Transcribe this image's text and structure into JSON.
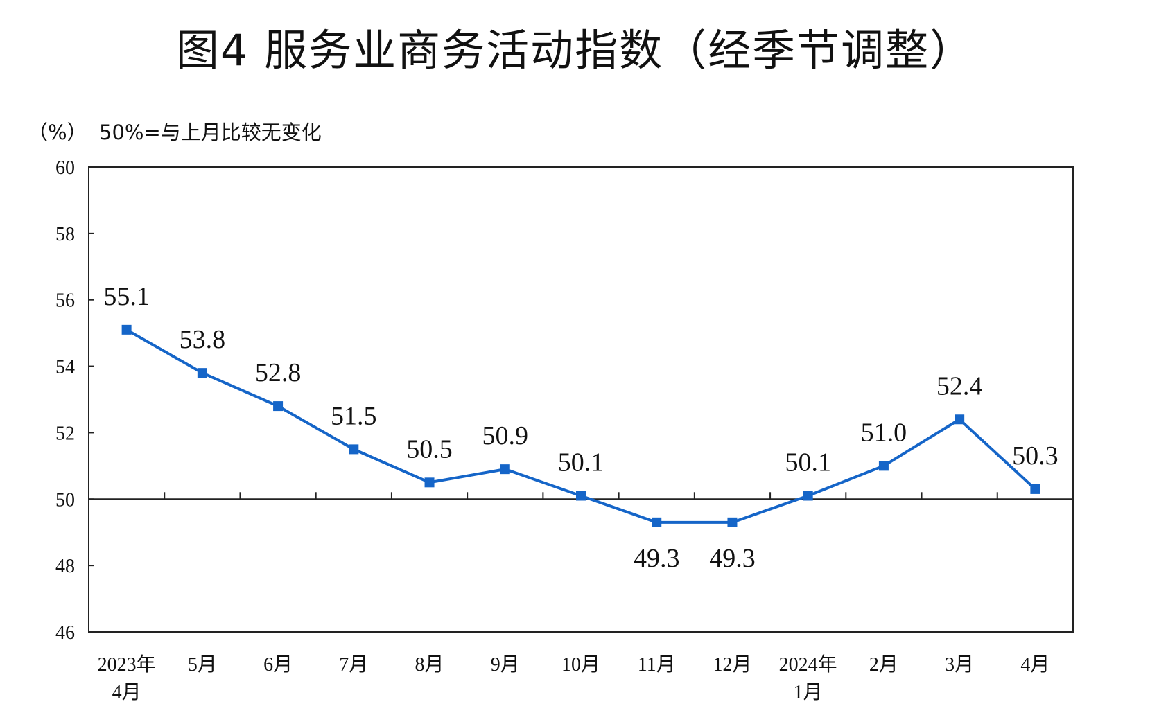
{
  "chart_data": {
    "type": "line",
    "title": "图4  服务业商务活动指数（经季节调整）",
    "yunit": "（%）",
    "note": "50%=与上月比较无变化",
    "categories": [
      [
        "2023年",
        "4月"
      ],
      [
        "5月"
      ],
      [
        "6月"
      ],
      [
        "7月"
      ],
      [
        "8月"
      ],
      [
        "9月"
      ],
      [
        "10月"
      ],
      [
        "11月"
      ],
      [
        "12月"
      ],
      [
        "2024年",
        "1月"
      ],
      [
        "2月"
      ],
      [
        "3月"
      ],
      [
        "4月"
      ]
    ],
    "values": [
      55.1,
      53.8,
      52.8,
      51.5,
      50.5,
      50.9,
      50.1,
      49.3,
      49.3,
      50.1,
      51.0,
      52.4,
      50.3
    ],
    "value_labels": [
      "55.1",
      "53.8",
      "52.8",
      "51.5",
      "50.5",
      "50.9",
      "50.1",
      "49.3",
      "49.3",
      "50.1",
      "51.0",
      "52.4",
      "50.3"
    ],
    "ylim": [
      46,
      60
    ],
    "yticks": [
      "46",
      "48",
      "50",
      "52",
      "54",
      "56",
      "58",
      "60"
    ],
    "reference_line": 50,
    "line_color": "#1565C8",
    "grid": false
  }
}
